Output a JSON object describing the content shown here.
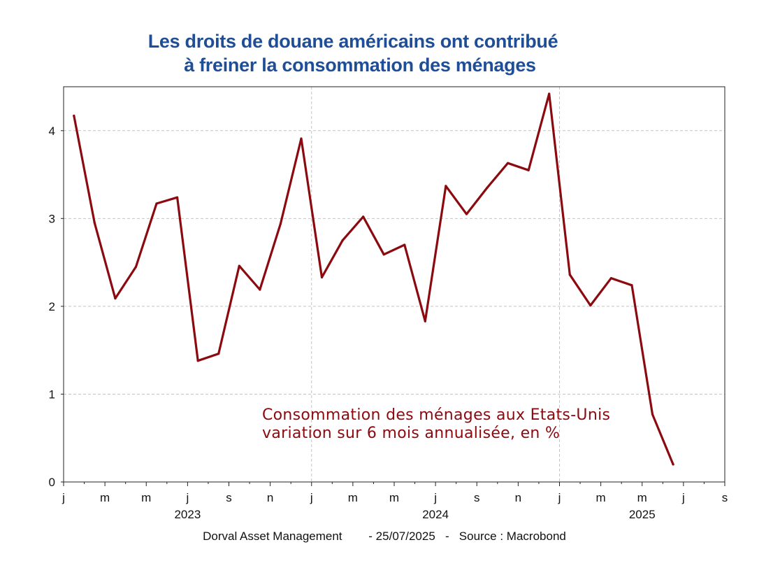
{
  "title": {
    "line1": "Les droits de douane américains ont contribué",
    "line2": "à freiner la consommation des ménages"
  },
  "footer": {
    "source_text": "Dorval Asset Management        - 25/07/2025   -   Source : Macrobond"
  },
  "colors": {
    "title": "#1f4e96",
    "series": "#8b0a0f",
    "grid": "#c4c4c4"
  },
  "chart_data": {
    "type": "line",
    "title": "Les droits de douane américains ont contribué à freiner la consommation des ménages",
    "xlabel": "",
    "ylabel": "",
    "ylim": [
      0,
      4.5
    ],
    "y_ticks": [
      0,
      1,
      2,
      3,
      4
    ],
    "grid": true,
    "x_range": [
      0,
      32
    ],
    "month_ticks": [
      "j",
      "m",
      "m",
      "j",
      "s",
      "n",
      "j",
      "m",
      "m",
      "j",
      "s",
      "n",
      "j",
      "m",
      "m",
      "j",
      "s"
    ],
    "year_labels": [
      {
        "label": "2023",
        "at": 6
      },
      {
        "label": "2024",
        "at": 18
      },
      {
        "label": "2025",
        "at": 28
      }
    ],
    "annotation": {
      "line1": "Consommation des ménages aux Etats-Unis",
      "line2": "variation sur 6 mois annualisée, en %"
    },
    "series": [
      {
        "name": "Consommation des ménages aux Etats-Unis - variation sur 6 mois annualisée, en %",
        "x": [
          0.5,
          1.5,
          2.5,
          3.5,
          4.5,
          5.5,
          6.5,
          7.5,
          8.5,
          9.5,
          10.5,
          11.5,
          12.5,
          13.5,
          14.5,
          15.5,
          16.5,
          17.5,
          18.5,
          19.5,
          20.5,
          21.5,
          22.5,
          23.5,
          24.5,
          25.5,
          26.5,
          27.5,
          28.5,
          29.5
        ],
        "values": [
          4.17,
          2.95,
          2.09,
          2.45,
          3.17,
          3.24,
          1.38,
          1.46,
          2.46,
          2.19,
          2.94,
          3.91,
          2.33,
          2.75,
          3.02,
          2.59,
          2.7,
          1.83,
          3.37,
          3.05,
          3.35,
          3.63,
          3.55,
          4.42,
          2.36,
          2.01,
          2.32,
          2.24,
          0.77,
          0.2
        ]
      }
    ]
  }
}
